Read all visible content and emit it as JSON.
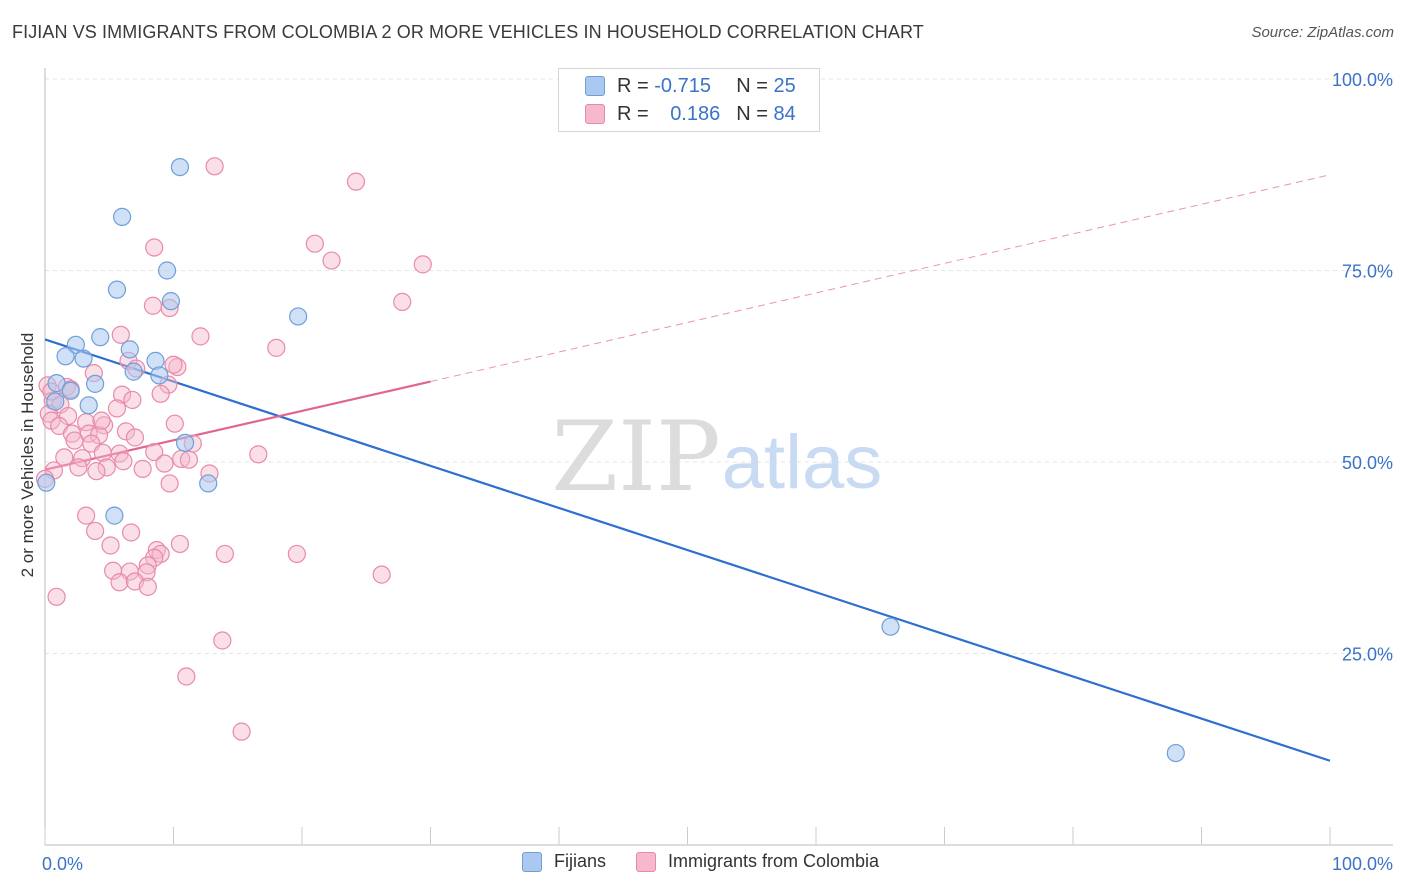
{
  "header": {
    "title": "FIJIAN VS IMMIGRANTS FROM COLOMBIA 2 OR MORE VEHICLES IN HOUSEHOLD CORRELATION CHART",
    "source": "Source: ZipAtlas.com"
  },
  "legend": {
    "rows": [
      {
        "r_label": "R =",
        "r_value": "-0.715",
        "n_label": "N =",
        "n_value": "25"
      },
      {
        "r_label": "R =",
        "r_value": "0.186",
        "n_label": "N =",
        "n_value": "84"
      }
    ],
    "series_names": [
      "Fijians",
      "Immigrants from Colombia"
    ]
  },
  "watermark": {
    "zip": "ZIP",
    "atlas": "atlas"
  },
  "colors": {
    "blue_fill": "#aac8f0",
    "blue_stroke": "#6e9fd8",
    "blue_line": "#2f6fcf",
    "pink_fill": "#f5b8cc",
    "pink_stroke": "#e98aa8",
    "pink_line": "#e06690",
    "tick_label": "#3a73c8",
    "grid": "#e4e4e4"
  },
  "chart_data": {
    "type": "scatter",
    "title": "FIJIAN VS IMMIGRANTS FROM COLOMBIA 2 OR MORE VEHICLES IN HOUSEHOLD CORRELATION CHART",
    "xlabel": "",
    "ylabel": "2 or more Vehicles in Household",
    "xlim": [
      0,
      100
    ],
    "ylim": [
      0,
      105
    ],
    "x_tick_labels": [
      "0.0%",
      "100.0%"
    ],
    "y_ticks": [
      25,
      50,
      75,
      100
    ],
    "y_tick_labels": [
      "25.0%",
      "50.0%",
      "75.0%",
      "100.0%"
    ],
    "grid": true,
    "legend_position": "top-center",
    "series": [
      {
        "name": "Fijians",
        "color": "#aac8f0",
        "points": [
          [
            10.5,
            88.5
          ],
          [
            6.0,
            82.0
          ],
          [
            9.5,
            75.0
          ],
          [
            5.6,
            72.5
          ],
          [
            9.8,
            71.0
          ],
          [
            19.7,
            69.0
          ],
          [
            4.3,
            66.3
          ],
          [
            2.4,
            65.3
          ],
          [
            6.6,
            64.7
          ],
          [
            1.6,
            63.8
          ],
          [
            3.0,
            63.5
          ],
          [
            8.6,
            63.2
          ],
          [
            6.9,
            61.8
          ],
          [
            8.9,
            61.3
          ],
          [
            0.9,
            60.3
          ],
          [
            3.9,
            60.2
          ],
          [
            2.0,
            59.3
          ],
          [
            0.8,
            57.9
          ],
          [
            3.4,
            57.4
          ],
          [
            10.9,
            52.5
          ],
          [
            12.7,
            47.2
          ],
          [
            0.1,
            47.3
          ],
          [
            5.4,
            43.0
          ],
          [
            65.8,
            28.5
          ],
          [
            88.0,
            12.0
          ]
        ],
        "trend": {
          "x": [
            0,
            100
          ],
          "y": [
            66.0,
            11.0
          ],
          "style": "solid"
        }
      },
      {
        "name": "Immigrants from Colombia",
        "color": "#f5b8cc",
        "points": [
          [
            13.2,
            88.6
          ],
          [
            24.2,
            86.6
          ],
          [
            21.0,
            78.5
          ],
          [
            8.5,
            78.0
          ],
          [
            22.3,
            76.3
          ],
          [
            29.4,
            75.8
          ],
          [
            8.4,
            70.4
          ],
          [
            9.7,
            70.1
          ],
          [
            27.8,
            70.9
          ],
          [
            12.1,
            66.4
          ],
          [
            5.9,
            66.6
          ],
          [
            18.0,
            64.9
          ],
          [
            6.5,
            63.2
          ],
          [
            10.3,
            62.4
          ],
          [
            10.0,
            62.7
          ],
          [
            3.8,
            61.6
          ],
          [
            7.1,
            62.2
          ],
          [
            9.6,
            60.1
          ],
          [
            0.2,
            60.0
          ],
          [
            1.7,
            59.8
          ],
          [
            6.0,
            58.8
          ],
          [
            9.0,
            58.9
          ],
          [
            0.6,
            58.0
          ],
          [
            1.2,
            57.5
          ],
          [
            5.6,
            57.0
          ],
          [
            6.8,
            58.1
          ],
          [
            0.3,
            56.3
          ],
          [
            1.8,
            56.0
          ],
          [
            0.5,
            55.4
          ],
          [
            3.2,
            55.2
          ],
          [
            4.6,
            54.8
          ],
          [
            1.1,
            54.7
          ],
          [
            2.1,
            53.7
          ],
          [
            6.3,
            54.0
          ],
          [
            3.4,
            53.7
          ],
          [
            4.2,
            53.5
          ],
          [
            2.3,
            52.8
          ],
          [
            3.6,
            52.4
          ],
          [
            7.0,
            53.2
          ],
          [
            10.1,
            55.0
          ],
          [
            11.5,
            52.4
          ],
          [
            4.5,
            51.2
          ],
          [
            5.8,
            51.1
          ],
          [
            8.5,
            51.3
          ],
          [
            16.6,
            51.0
          ],
          [
            1.5,
            50.6
          ],
          [
            2.9,
            50.5
          ],
          [
            10.6,
            50.4
          ],
          [
            11.2,
            50.3
          ],
          [
            6.1,
            50.1
          ],
          [
            9.3,
            49.8
          ],
          [
            2.6,
            49.3
          ],
          [
            4.8,
            49.3
          ],
          [
            4.0,
            48.8
          ],
          [
            7.6,
            49.1
          ],
          [
            12.8,
            48.5
          ],
          [
            0.7,
            48.9
          ],
          [
            9.7,
            47.2
          ],
          [
            3.2,
            43.0
          ],
          [
            3.9,
            41.0
          ],
          [
            6.7,
            40.8
          ],
          [
            5.1,
            39.1
          ],
          [
            10.5,
            39.3
          ],
          [
            8.7,
            38.5
          ],
          [
            9.0,
            38.0
          ],
          [
            8.5,
            37.5
          ],
          [
            14.0,
            38.0
          ],
          [
            19.6,
            38.0
          ],
          [
            8.0,
            36.5
          ],
          [
            5.3,
            35.8
          ],
          [
            6.6,
            35.7
          ],
          [
            7.9,
            35.6
          ],
          [
            26.2,
            35.3
          ],
          [
            5.8,
            34.3
          ],
          [
            7.0,
            34.4
          ],
          [
            8.0,
            33.7
          ],
          [
            0.9,
            32.4
          ],
          [
            13.8,
            26.7
          ],
          [
            11.0,
            22.0
          ],
          [
            15.3,
            14.8
          ],
          [
            0.5,
            59.2
          ],
          [
            2.0,
            59.5
          ],
          [
            0.0,
            47.8
          ],
          [
            4.4,
            55.4
          ]
        ],
        "trend": {
          "x": [
            0,
            30,
            100
          ],
          "y": [
            49.0,
            60.5,
            87.5
          ],
          "style": "solid-then-dashed"
        }
      }
    ]
  }
}
